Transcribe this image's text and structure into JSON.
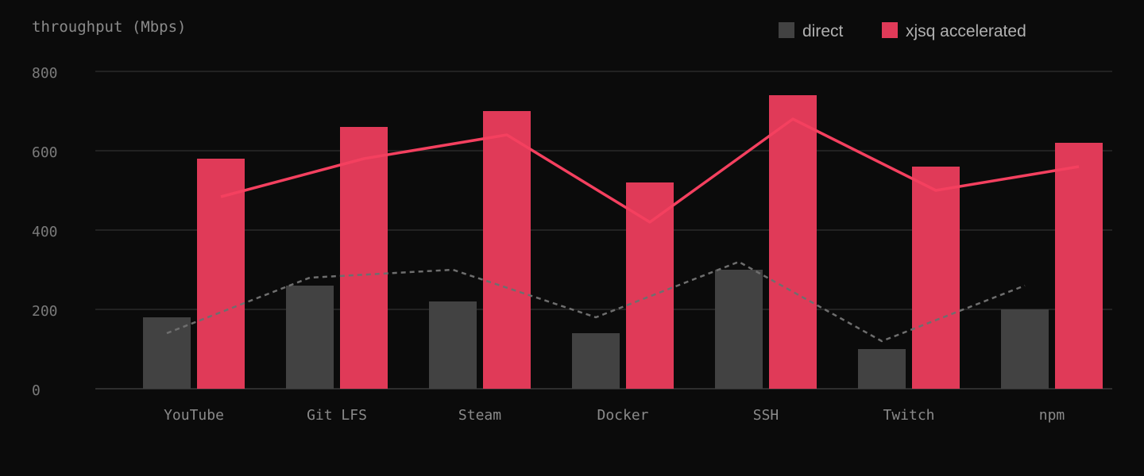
{
  "chart_data": {
    "type": "bar",
    "title": "throughput (Mbps)",
    "categories": [
      "YouTube",
      "Git LFS",
      "Steam",
      "Docker",
      "SSH",
      "Twitch",
      "npm"
    ],
    "series": [
      {
        "name": "direct",
        "color": "#424242",
        "values": [
          180,
          260,
          220,
          140,
          300,
          100,
          200
        ]
      },
      {
        "name": "xjsq accelerated",
        "color": "#e03a58",
        "values": [
          580,
          660,
          700,
          520,
          740,
          560,
          620
        ]
      }
    ],
    "lines": [
      {
        "color": "#6e6e6e",
        "dashed": true,
        "values": [
          140,
          280,
          300,
          180,
          320,
          120,
          260
        ]
      },
      {
        "color": "#f4405f",
        "dashed": false,
        "values": [
          484,
          580,
          640,
          420,
          680,
          500,
          560
        ]
      }
    ],
    "ylim": [
      0,
      800
    ],
    "yticks": [
      0,
      200,
      400,
      600,
      800
    ],
    "grid": true
  }
}
